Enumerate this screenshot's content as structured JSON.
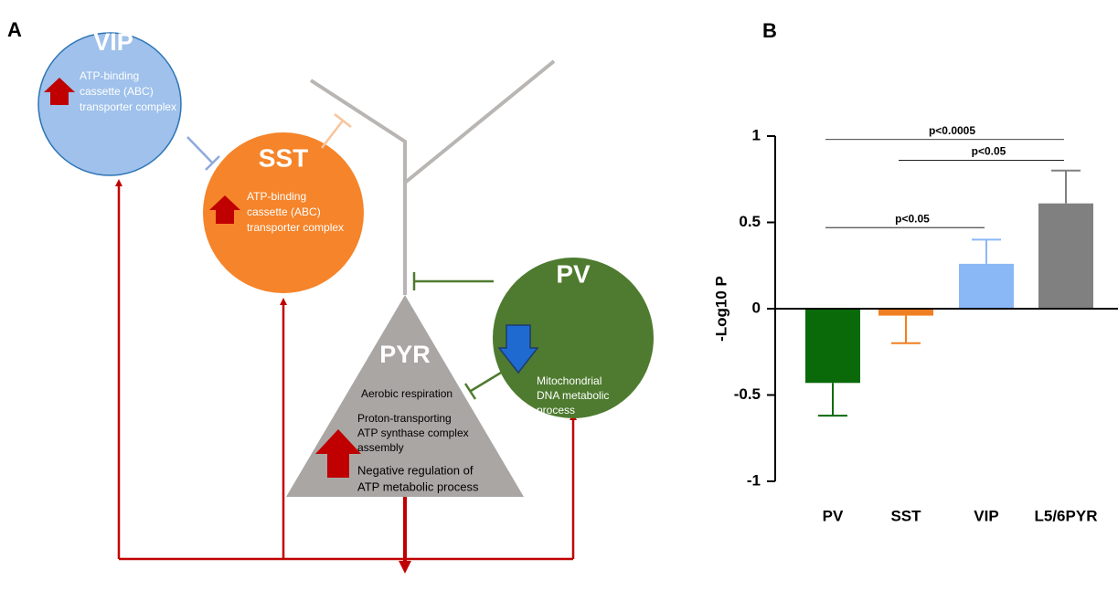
{
  "diagram": {
    "panel_label": "A",
    "vip": {
      "label": "VIP",
      "lines": [
        "ATP-binding",
        "cassette (ABC)",
        "transporter complex"
      ]
    },
    "sst": {
      "label": "SST",
      "lines": [
        "ATP-binding",
        "cassette (ABC)",
        "transporter complex"
      ]
    },
    "pv": {
      "label": "PV",
      "lines": [
        "Mitochondrial",
        "DNA metabolic",
        "process"
      ]
    },
    "pyr": {
      "label": "PYR",
      "lines": [
        "Aerobic respiration",
        "Proton-transporting",
        "ATP synthase complex",
        "assembly",
        "Negative regulation of",
        "ATP metabolic process"
      ]
    }
  },
  "chart_data": {
    "type": "bar",
    "panel_label": "B",
    "y_label": "-Log10 P",
    "categories": [
      "PV",
      "SST",
      "VIP",
      "L5/6PYR"
    ],
    "values": [
      -0.43,
      -0.04,
      0.26,
      0.61
    ],
    "errors": [
      0.19,
      0.16,
      0.14,
      0.19
    ],
    "colors": [
      "#0a6a0a",
      "#f07f21",
      "#8ab8f6",
      "#808080"
    ],
    "ylim": [
      -1,
      1
    ],
    "yticks": [
      -1,
      -0.5,
      0,
      0.5,
      1
    ],
    "annotations": [
      {
        "label": "p<0.0005",
        "from": "PV",
        "to": "L5/6PYR",
        "y": 0.98
      },
      {
        "label": "p<0.05",
        "from": "SST",
        "to": "L5/6PYR",
        "y": 0.86
      },
      {
        "label": "p<0.05",
        "from": "PV",
        "to": "VIP",
        "y": 0.47
      }
    ]
  }
}
